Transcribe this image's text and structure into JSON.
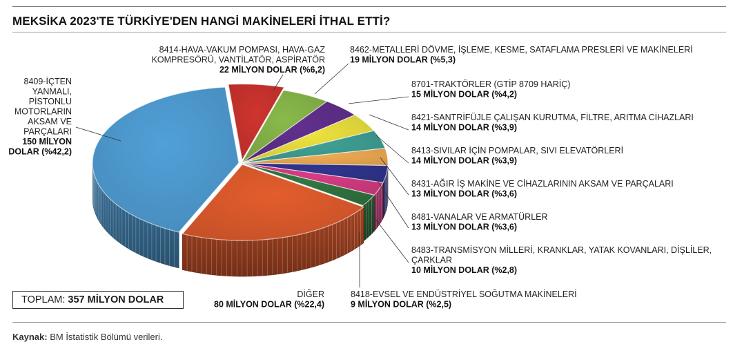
{
  "title": "MEKSİKA 2023'TE TÜRKİYE'DEN HANGİ MAKİNELERİ İTHAL ETTİ?",
  "total": {
    "label": "TOPLAM:",
    "value": "357 MİLYON DOLAR"
  },
  "source": {
    "label": "Kaynak:",
    "text": "BM İstatistik Bölümü verileri."
  },
  "chart_data": {
    "type": "pie",
    "unit": "MİLYON DOLAR",
    "slices": [
      {
        "name": "8414-HAVA-VAKUM POMPASI, HAVA-GAZ KOMPRESÖRÜ, VANTİLATÖR, ASPİRATÖR",
        "name_lines": [
          "8414-HAVA-VAKUM POMPASI, HAVA-GAZ",
          "KOMPRESÖRÜ, VANTİLATÖR, ASPİRATÖR"
        ],
        "value": 22,
        "value_label": "22 MİLYON DOLAR (%6,2)",
        "percent": 6.2,
        "color": "#c0302b"
      },
      {
        "name": "8462-METALLERİ DÖVME, İŞLEME, KESME, SATAFLAMA PRESLERİ VE MAKİNELERİ",
        "name_lines": [
          "8462-METALLERİ DÖVME, İŞLEME, KESME, SATAFLAMA PRESLERİ VE MAKİNELERİ"
        ],
        "value": 19,
        "value_label": "19 MİLYON DOLAR (%5,3)",
        "percent": 5.3,
        "color": "#7fab45"
      },
      {
        "name": "8701-TRAKTÖRLER (GTİP 8709 HARİÇ)",
        "name_lines": [
          "8701-TRAKTÖRLER (GTİP 8709 HARİÇ)"
        ],
        "value": 15,
        "value_label": "15 MİLYON DOLAR (%4,2)",
        "percent": 4.2,
        "color": "#5a2c83"
      },
      {
        "name": "8421-SANTRİFÜJLE ÇALIŞAN KURUTMA, FİLTRE, ARITMA CİHAZLARI",
        "name_lines": [
          "8421-SANTRİFÜJLE ÇALIŞAN KURUTMA, FİLTRE, ARITMA CİHAZLARI"
        ],
        "value": 14,
        "value_label": "14 MİLYON DOLAR (%3,9)",
        "percent": 3.9,
        "color": "#dcd23a"
      },
      {
        "name": "8413-SIVILAR İÇİN POMPALAR, SIVI ELEVATÖRLERİ",
        "name_lines": [
          "8413-SIVILAR İÇİN POMPALAR, SIVI ELEVATÖRLERİ"
        ],
        "value": 14,
        "value_label": "14 MİLYON DOLAR (%3,9)",
        "percent": 3.9,
        "color": "#3b958a"
      },
      {
        "name": "8431-AĞIR İŞ MAKİNE VE CİHAZLARININ AKSAM VE PARÇALARI",
        "name_lines": [
          "8431-AĞIR İŞ MAKİNE VE CİHAZLARININ AKSAM VE PARÇALARI"
        ],
        "value": 13,
        "value_label": "13 MİLYON DOLAR (%3,6)",
        "percent": 3.6,
        "color": "#e0a04d"
      },
      {
        "name": "8481-VANALAR VE ARMATÜRLER",
        "name_lines": [
          "8481-VANALAR VE ARMATÜRLER"
        ],
        "value": 13,
        "value_label": "13 MİLYON DOLAR (%3,6)",
        "percent": 3.6,
        "color": "#2d3184"
      },
      {
        "name": "8483-TRANSMİSYON MİLLERİ, KRANKLAR, YATAK KOVANLARI, DİŞLİLER, ÇARKLAR",
        "name_lines": [
          "8483-TRANSMİSYON MİLLERİ, KRANKLAR, YATAK KOVANLARI, DİŞLİLER,",
          "ÇARKLAR"
        ],
        "value": 10,
        "value_label": "10 MİLYON DOLAR (%2,8)",
        "percent": 2.8,
        "color": "#c8387a"
      },
      {
        "name": "8418-EVSEL VE ENDÜSTRİYEL SOĞUTMA MAKİNELERİ",
        "name_lines": [
          "8418-EVSEL VE ENDÜSTRİYEL SOĞUTMA MAKİNELERİ"
        ],
        "value": 9,
        "value_label": "9 MİLYON DOLAR (%2,5)",
        "percent": 2.5,
        "color": "#2e6e3c"
      },
      {
        "name": "DİĞER",
        "name_lines": [
          "DİĞER"
        ],
        "value": 80,
        "value_label": "80 MİLYON DOLAR (%22,4)",
        "percent": 22.4,
        "color": "#d2562a"
      },
      {
        "name": "8409-İÇTEN YANMALI, PİSTONLU MOTORLARIN AKSAM VE PARÇALARI",
        "name_lines": [
          "8409-İÇTEN",
          "YANMALI,",
          "PİSTONLU",
          "MOTORLARIN",
          "AKSAM VE",
          "PARÇALARI"
        ],
        "value": 150,
        "value_label_lines": [
          "150 MİLYON",
          "DOLAR (%42,2)"
        ],
        "percent": 42.2,
        "color": "#4b94c8"
      }
    ]
  }
}
